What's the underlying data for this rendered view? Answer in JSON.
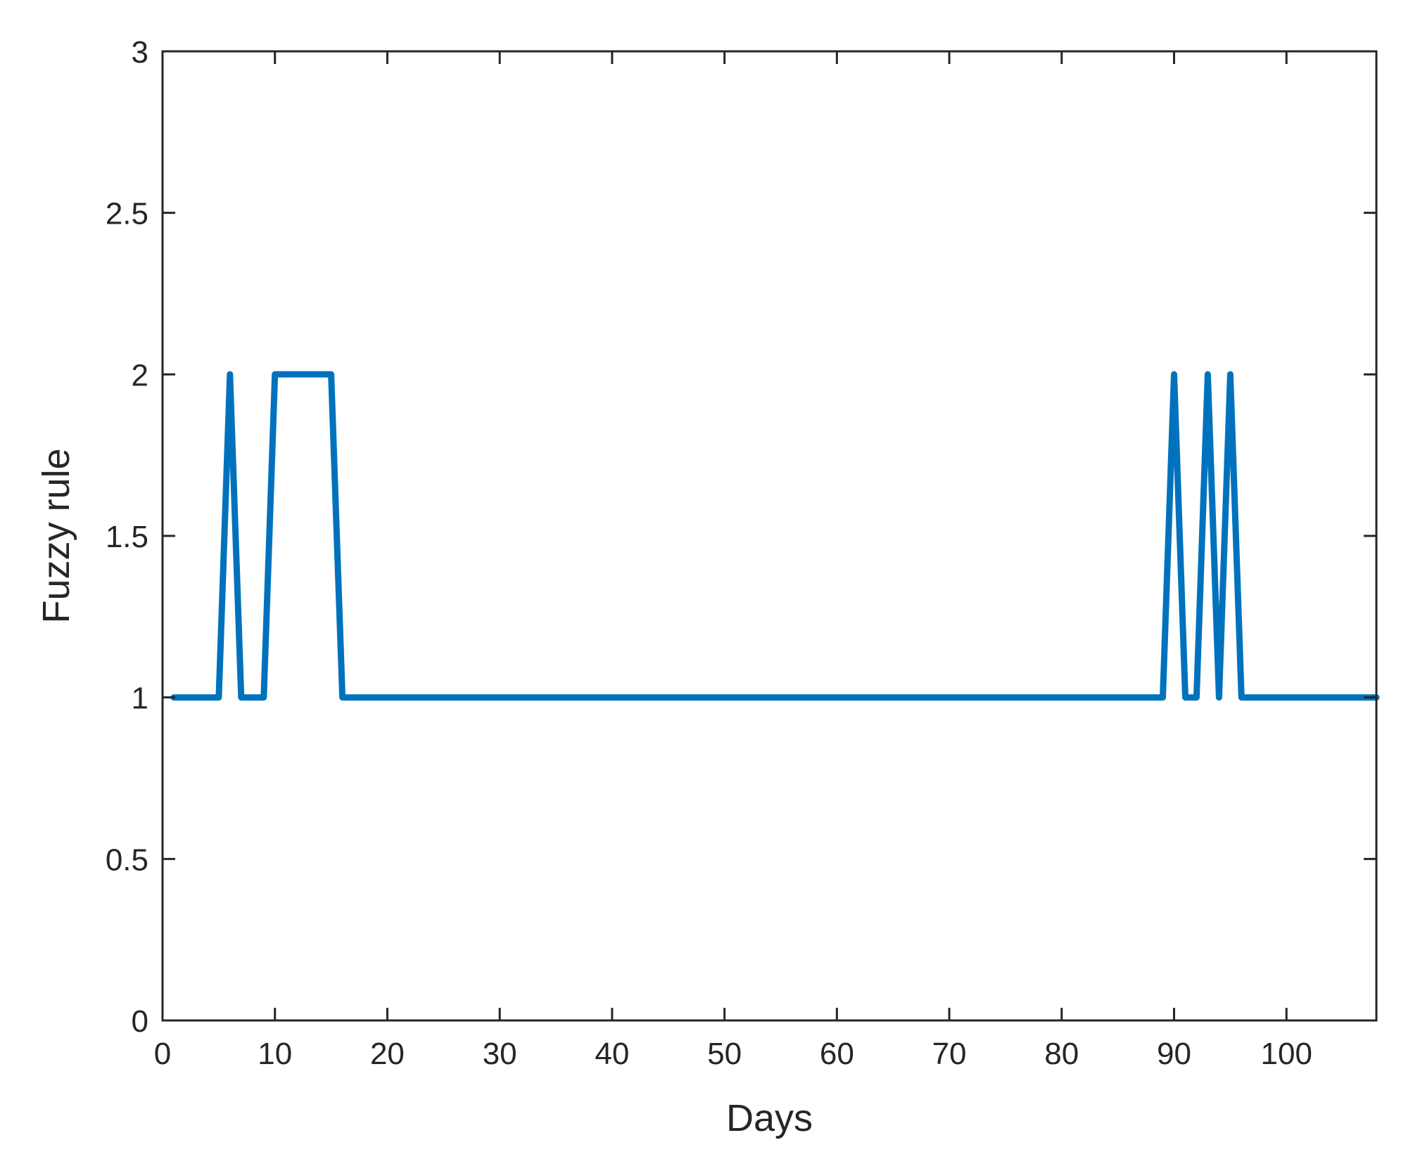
{
  "chart_data": {
    "type": "line",
    "title": "",
    "xlabel": "Days",
    "ylabel": "Fuzzy rule",
    "xlim": [
      0,
      108
    ],
    "ylim": [
      0,
      3
    ],
    "xticks": [
      0,
      10,
      20,
      30,
      40,
      50,
      60,
      70,
      80,
      90,
      100
    ],
    "xtick_labels": [
      "0",
      "10",
      "20",
      "30",
      "40",
      "50",
      "60",
      "70",
      "80",
      "90",
      "100"
    ],
    "yticks": [
      0,
      0.5,
      1,
      1.5,
      2,
      2.5,
      3
    ],
    "ytick_labels": [
      "0",
      "0.5",
      "1",
      "1.5",
      "2",
      "2.5",
      "3"
    ],
    "grid": false,
    "legend": "none",
    "series": [
      {
        "color": "#0072BD",
        "x": [
          1,
          5,
          6,
          7,
          9,
          10,
          15,
          16,
          89,
          90,
          91,
          92,
          93,
          94,
          95,
          96,
          108
        ],
        "y": [
          1,
          1,
          2,
          1,
          1,
          2,
          2,
          1,
          1,
          2,
          1,
          1,
          2,
          1,
          2,
          1,
          1
        ]
      }
    ]
  }
}
